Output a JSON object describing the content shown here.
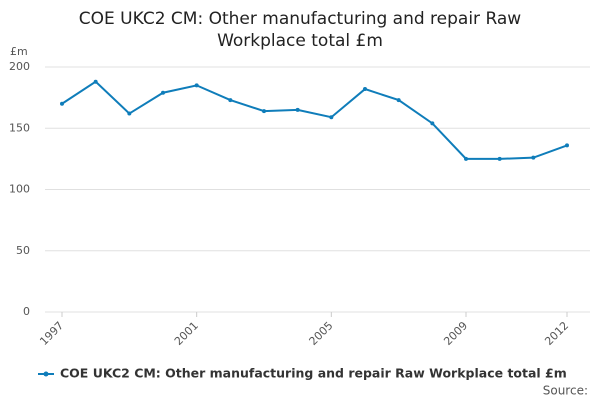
{
  "chart_data": {
    "type": "line",
    "title": "COE UKC2 CM: Other manufacturing and repair Raw Workplace total £m",
    "y_label": "£m",
    "source": "Source:",
    "x": [
      1997,
      1998,
      1999,
      2000,
      2001,
      2002,
      2003,
      2004,
      2005,
      2006,
      2007,
      2008,
      2009,
      2010,
      2011,
      2012
    ],
    "series": [
      {
        "name": "COE UKC2 CM: Other manufacturing and repair Raw Workplace total £m",
        "color": "#0f7dba",
        "values": [
          170,
          188,
          162,
          179,
          185,
          173,
          164,
          165,
          159,
          182,
          173,
          154,
          125,
          125,
          126,
          136
        ]
      }
    ],
    "xlim": [
      1997,
      2012
    ],
    "xticks": [
      1997,
      2001,
      2005,
      2009,
      2012
    ],
    "ylim": [
      0,
      200
    ],
    "yticks": [
      0,
      50,
      100,
      150,
      200
    ],
    "grid": true
  }
}
